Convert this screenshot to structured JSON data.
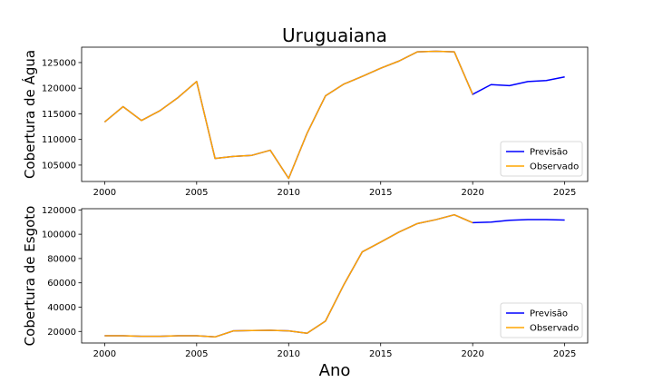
{
  "chart_data": {
    "type": "line",
    "title": "Uruguaiana",
    "xlabel": "Ano",
    "colors": {
      "previsao": "#0000ff",
      "observado": "#ffa500"
    },
    "panels": [
      {
        "ylabel": "Cobertura de Água",
        "ylim": [
          101800,
          128000
        ],
        "yticks": [
          105000,
          110000,
          115000,
          120000,
          125000
        ],
        "xlim": [
          1998.75,
          2026.25
        ],
        "xticks": [
          2000,
          2005,
          2010,
          2015,
          2020,
          2025
        ],
        "legend_position": "lower-right",
        "series": [
          {
            "name": "Previsão",
            "color_key": "previsao",
            "x": [
              2000,
              2001,
              2002,
              2003,
              2004,
              2005,
              2006,
              2007,
              2008,
              2009,
              2010,
              2011,
              2012,
              2013,
              2014,
              2015,
              2016,
              2017,
              2018,
              2019,
              2020,
              2021,
              2022,
              2023,
              2024,
              2025
            ],
            "values": [
              113400,
              116400,
              113700,
              115600,
              118200,
              121300,
              106300,
              106700,
              106900,
              107900,
              102400,
              111200,
              118500,
              120800,
              122300,
              123900,
              125300,
              127100,
              127200,
              127100,
              118800,
              120700,
              120500,
              121300,
              121500,
              122200
            ]
          },
          {
            "name": "Observado",
            "color_key": "observado",
            "x": [
              2000,
              2001,
              2002,
              2003,
              2004,
              2005,
              2006,
              2007,
              2008,
              2009,
              2010,
              2011,
              2012,
              2013,
              2014,
              2015,
              2016,
              2017,
              2018,
              2019,
              2020
            ],
            "values": [
              113400,
              116400,
              113700,
              115600,
              118200,
              121300,
              106300,
              106700,
              106900,
              107900,
              102400,
              111200,
              118500,
              120800,
              122300,
              123900,
              125300,
              127100,
              127200,
              127100,
              118800
            ]
          }
        ]
      },
      {
        "ylabel": "Cobertura de Esgoto",
        "ylim": [
          10500,
          121000
        ],
        "yticks": [
          20000,
          40000,
          60000,
          80000,
          100000,
          120000
        ],
        "xlim": [
          1998.75,
          2026.25
        ],
        "xticks": [
          2000,
          2005,
          2010,
          2015,
          2020,
          2025
        ],
        "legend_position": "lower-right",
        "series": [
          {
            "name": "Previsão",
            "color_key": "previsao",
            "x": [
              2000,
              2001,
              2002,
              2003,
              2004,
              2005,
              2006,
              2007,
              2008,
              2009,
              2010,
              2011,
              2012,
              2013,
              2014,
              2015,
              2016,
              2017,
              2018,
              2019,
              2020,
              2021,
              2022,
              2023,
              2024,
              2025
            ],
            "values": [
              16500,
              16500,
              16000,
              16000,
              16500,
              16500,
              15500,
              20500,
              20800,
              21000,
              20500,
              18500,
              28500,
              58500,
              85500,
              93500,
              101800,
              108800,
              112000,
              116000,
              109500,
              110000,
              111500,
              112000,
              112000,
              111700
            ]
          },
          {
            "name": "Observado",
            "color_key": "observado",
            "x": [
              2000,
              2001,
              2002,
              2003,
              2004,
              2005,
              2006,
              2007,
              2008,
              2009,
              2010,
              2011,
              2012,
              2013,
              2014,
              2015,
              2016,
              2017,
              2018,
              2019,
              2020
            ],
            "values": [
              16500,
              16500,
              16000,
              16000,
              16500,
              16500,
              15500,
              20500,
              20800,
              21000,
              20500,
              18500,
              28500,
              58500,
              85500,
              93500,
              101800,
              108800,
              112000,
              116000,
              109500
            ]
          }
        ]
      }
    ]
  }
}
